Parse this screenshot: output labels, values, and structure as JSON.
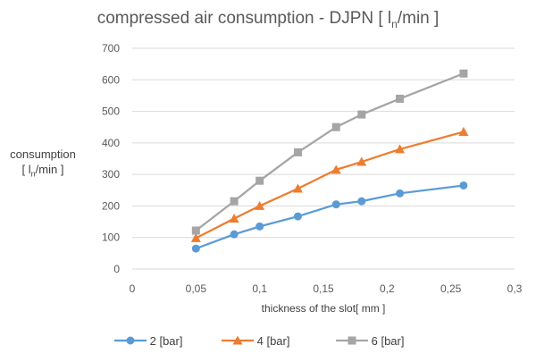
{
  "chart_data": {
    "type": "line",
    "title": "compressed air consumption - DJPN [ l",
    "title_sub": "n",
    "title_end": "/min ]",
    "ylabel_line1": "consumption",
    "ylabel_line2_start": "[ l",
    "ylabel_sub": "n",
    "ylabel_line2_end": "/min ]",
    "xlabel": "thickness of the slot[ mm ]",
    "xlim": [
      0,
      0.3
    ],
    "ylim": [
      0,
      700
    ],
    "x_ticks": [
      "0",
      "0,05",
      "0,1",
      "0,15",
      "0,2",
      "0,25",
      "0,3"
    ],
    "y_ticks": [
      "0",
      "100",
      "200",
      "300",
      "400",
      "500",
      "600",
      "700"
    ],
    "grid": "horizontal",
    "legend_position": "bottom",
    "x": [
      0.05,
      0.08,
      0.1,
      0.13,
      0.16,
      0.18,
      0.21,
      0.26
    ],
    "series": [
      {
        "name": "2 [bar]",
        "color": "#5B9BD5",
        "marker": "circle",
        "values": [
          65,
          110,
          135,
          167,
          205,
          215,
          240,
          265
        ]
      },
      {
        "name": "4 [bar]",
        "color": "#ED7D31",
        "marker": "triangle",
        "values": [
          98,
          160,
          200,
          255,
          315,
          340,
          380,
          435
        ]
      },
      {
        "name": "6 [bar]",
        "color": "#A5A5A5",
        "marker": "square",
        "values": [
          122,
          215,
          280,
          370,
          450,
          490,
          540,
          620
        ]
      }
    ]
  }
}
